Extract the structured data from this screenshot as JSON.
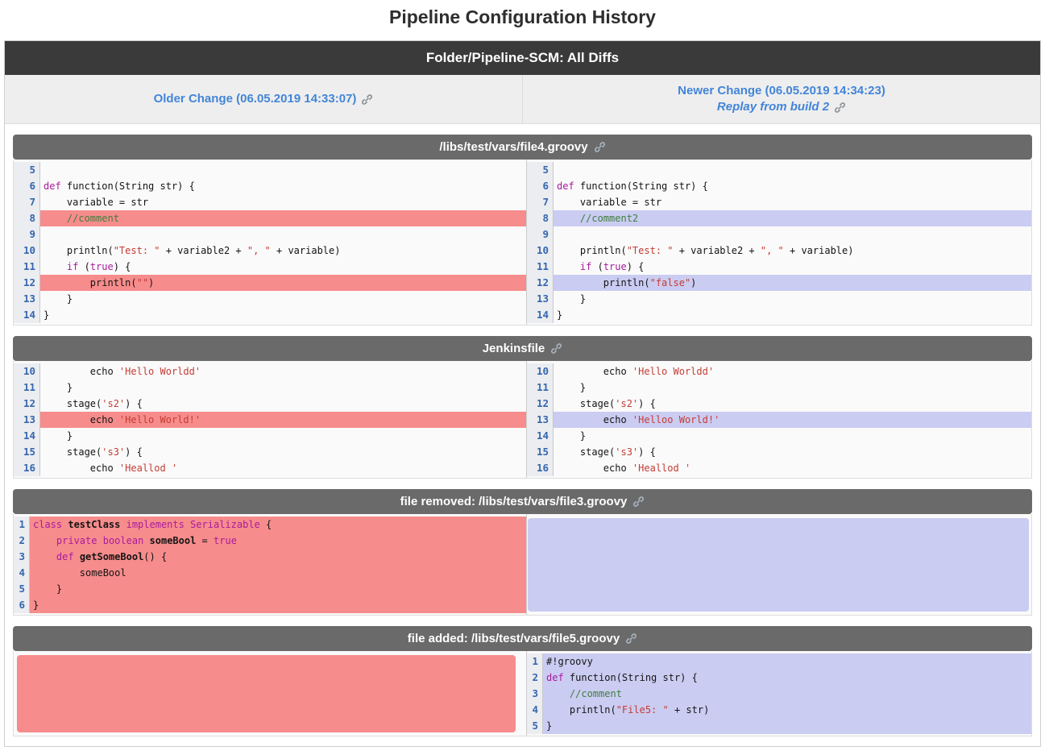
{
  "page_title": "Pipeline Configuration History",
  "banner": {
    "title": "Folder/Pipeline-SCM: All Diffs"
  },
  "nav": {
    "older": {
      "label": "Older Change (06.05.2019 14:33:07)"
    },
    "newer": {
      "label": "Newer Change (06.05.2019 14:34:23)",
      "replay_label": "Replay from build 2"
    }
  },
  "icons": {
    "link": "link-icon"
  },
  "colors": {
    "removed_highlight": "#f78c8c",
    "added_highlight": "#cbccf2",
    "link_blue": "#4385d8",
    "banner_bg": "#3a3a3a",
    "file_header_bg": "#6a6a6a",
    "line_number_blue": "#3566af",
    "keyword": "#a81b9e",
    "string": "#c43c34",
    "comment": "#3e7e3e"
  },
  "sections": [
    {
      "title": "/libs/test/vars/file4.groovy",
      "left": {
        "type": "code",
        "rows": [
          {
            "n": 5,
            "hl": null,
            "parts": []
          },
          {
            "n": 6,
            "hl": null,
            "parts": [
              [
                "kwd",
                "def"
              ],
              [
                "pln",
                " function(String str) {"
              ]
            ]
          },
          {
            "n": 7,
            "hl": null,
            "parts": [
              [
                "pln",
                "    variable = str"
              ]
            ]
          },
          {
            "n": 8,
            "hl": "red",
            "parts": [
              [
                "com",
                "    //comment"
              ]
            ]
          },
          {
            "n": 9,
            "hl": null,
            "parts": []
          },
          {
            "n": 10,
            "hl": null,
            "parts": [
              [
                "pln",
                "    println("
              ],
              [
                "str",
                "\"Test: \""
              ],
              [
                "pln",
                " + variable2 + "
              ],
              [
                "str",
                "\", \""
              ],
              [
                "pln",
                " + variable)"
              ]
            ]
          },
          {
            "n": 11,
            "hl": null,
            "parts": [
              [
                "pln",
                "    "
              ],
              [
                "kwd",
                "if"
              ],
              [
                "pln",
                " ("
              ],
              [
                "kwd",
                "true"
              ],
              [
                "pln",
                ") {"
              ]
            ]
          },
          {
            "n": 12,
            "hl": "red",
            "parts": [
              [
                "pln",
                "        println("
              ],
              [
                "str",
                "\"\""
              ],
              [
                "pln",
                ")"
              ]
            ]
          },
          {
            "n": 13,
            "hl": null,
            "parts": [
              [
                "pln",
                "    }"
              ]
            ]
          },
          {
            "n": 14,
            "hl": null,
            "parts": [
              [
                "pln",
                "}"
              ]
            ]
          }
        ]
      },
      "right": {
        "type": "code",
        "rows": [
          {
            "n": 5,
            "hl": null,
            "parts": []
          },
          {
            "n": 6,
            "hl": null,
            "parts": [
              [
                "kwd",
                "def"
              ],
              [
                "pln",
                " function(String str) {"
              ]
            ]
          },
          {
            "n": 7,
            "hl": null,
            "parts": [
              [
                "pln",
                "    variable = str"
              ]
            ]
          },
          {
            "n": 8,
            "hl": "lav",
            "parts": [
              [
                "com",
                "    //comment2"
              ]
            ]
          },
          {
            "n": 9,
            "hl": null,
            "parts": []
          },
          {
            "n": 10,
            "hl": null,
            "parts": [
              [
                "pln",
                "    println("
              ],
              [
                "str",
                "\"Test: \""
              ],
              [
                "pln",
                " + variable2 + "
              ],
              [
                "str",
                "\", \""
              ],
              [
                "pln",
                " + variable)"
              ]
            ]
          },
          {
            "n": 11,
            "hl": null,
            "parts": [
              [
                "pln",
                "    "
              ],
              [
                "kwd",
                "if"
              ],
              [
                "pln",
                " ("
              ],
              [
                "kwd",
                "true"
              ],
              [
                "pln",
                ") {"
              ]
            ]
          },
          {
            "n": 12,
            "hl": "lav",
            "parts": [
              [
                "pln",
                "        println("
              ],
              [
                "str",
                "\"false\""
              ],
              [
                "pln",
                ")"
              ]
            ]
          },
          {
            "n": 13,
            "hl": null,
            "parts": [
              [
                "pln",
                "    }"
              ]
            ]
          },
          {
            "n": 14,
            "hl": null,
            "parts": [
              [
                "pln",
                "}"
              ]
            ]
          }
        ]
      }
    },
    {
      "title": "Jenkinsfile",
      "left": {
        "type": "code",
        "rows": [
          {
            "n": 10,
            "hl": null,
            "parts": [
              [
                "pln",
                "        echo "
              ],
              [
                "str",
                "'Hello Worldd'"
              ]
            ]
          },
          {
            "n": 11,
            "hl": null,
            "parts": [
              [
                "pln",
                "    }"
              ]
            ]
          },
          {
            "n": 12,
            "hl": null,
            "parts": [
              [
                "pln",
                "    stage("
              ],
              [
                "str",
                "'s2'"
              ],
              [
                "pln",
                ") {"
              ]
            ]
          },
          {
            "n": 13,
            "hl": "red",
            "parts": [
              [
                "pln",
                "        echo "
              ],
              [
                "str",
                "'Hello World!'"
              ]
            ]
          },
          {
            "n": 14,
            "hl": null,
            "parts": [
              [
                "pln",
                "    }"
              ]
            ]
          },
          {
            "n": 15,
            "hl": null,
            "parts": [
              [
                "pln",
                "    stage("
              ],
              [
                "str",
                "'s3'"
              ],
              [
                "pln",
                ") {"
              ]
            ]
          },
          {
            "n": 16,
            "hl": null,
            "parts": [
              [
                "pln",
                "        echo "
              ],
              [
                "str",
                "'Heallod '"
              ]
            ]
          }
        ]
      },
      "right": {
        "type": "code",
        "rows": [
          {
            "n": 10,
            "hl": null,
            "parts": [
              [
                "pln",
                "        echo "
              ],
              [
                "str",
                "'Hello Worldd'"
              ]
            ]
          },
          {
            "n": 11,
            "hl": null,
            "parts": [
              [
                "pln",
                "    }"
              ]
            ]
          },
          {
            "n": 12,
            "hl": null,
            "parts": [
              [
                "pln",
                "    stage("
              ],
              [
                "str",
                "'s2'"
              ],
              [
                "pln",
                ") {"
              ]
            ]
          },
          {
            "n": 13,
            "hl": "lav",
            "parts": [
              [
                "pln",
                "        echo "
              ],
              [
                "str",
                "'Helloo World!'"
              ]
            ]
          },
          {
            "n": 14,
            "hl": null,
            "parts": [
              [
                "pln",
                "    }"
              ]
            ]
          },
          {
            "n": 15,
            "hl": null,
            "parts": [
              [
                "pln",
                "    stage("
              ],
              [
                "str",
                "'s3'"
              ],
              [
                "pln",
                ") {"
              ]
            ]
          },
          {
            "n": 16,
            "hl": null,
            "parts": [
              [
                "pln",
                "        echo "
              ],
              [
                "str",
                "'Heallod '"
              ]
            ]
          }
        ]
      }
    },
    {
      "title": "file removed: /libs/test/vars/file3.groovy",
      "left": {
        "type": "code",
        "rows": [
          {
            "n": 1,
            "hl": "red",
            "parts": [
              [
                "kwd",
                "class"
              ],
              [
                "typ",
                " testClass"
              ],
              [
                "kwd",
                " implements"
              ],
              [
                "kwd",
                " Serializable"
              ],
              [
                "pln",
                " {"
              ]
            ]
          },
          {
            "n": 2,
            "hl": "red",
            "parts": [
              [
                "pln",
                "    "
              ],
              [
                "kwd",
                "private"
              ],
              [
                "pln",
                " "
              ],
              [
                "kwd",
                "boolean"
              ],
              [
                "typ",
                " someBool"
              ],
              [
                "pln",
                " = "
              ],
              [
                "kwd",
                "true"
              ]
            ]
          },
          {
            "n": 3,
            "hl": "red",
            "parts": [
              [
                "pln",
                "    "
              ],
              [
                "kwd",
                "def"
              ],
              [
                "typ",
                " getSomeBool"
              ],
              [
                "pln",
                "() {"
              ]
            ]
          },
          {
            "n": 4,
            "hl": "red",
            "parts": [
              [
                "pln",
                "        someBool"
              ]
            ]
          },
          {
            "n": 5,
            "hl": "red",
            "parts": [
              [
                "pln",
                "    }"
              ]
            ]
          },
          {
            "n": 6,
            "hl": "red",
            "parts": [
              [
                "pln",
                "}"
              ]
            ]
          }
        ]
      },
      "right": {
        "type": "empty",
        "hl": "lav",
        "rows_count": 6
      }
    },
    {
      "title": "file added: /libs/test/vars/file5.groovy",
      "left": {
        "type": "empty",
        "hl": "red",
        "rows_count": 5
      },
      "right": {
        "type": "code",
        "rows": [
          {
            "n": 1,
            "hl": "lav",
            "parts": [
              [
                "pln",
                "#!groovy"
              ]
            ]
          },
          {
            "n": 2,
            "hl": "lav",
            "parts": [
              [
                "kwd",
                "def"
              ],
              [
                "pln",
                " function(String str) {"
              ]
            ]
          },
          {
            "n": 3,
            "hl": "lav",
            "parts": [
              [
                "com",
                "    //comment"
              ]
            ]
          },
          {
            "n": 4,
            "hl": "lav",
            "parts": [
              [
                "pln",
                "    println("
              ],
              [
                "str",
                "\"File5: \""
              ],
              [
                "pln",
                " + str)"
              ]
            ]
          },
          {
            "n": 5,
            "hl": "lav",
            "parts": [
              [
                "pln",
                "}"
              ]
            ]
          }
        ]
      }
    }
  ]
}
